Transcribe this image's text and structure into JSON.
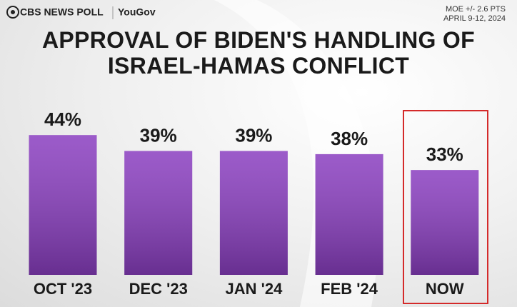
{
  "header": {
    "brand": "CBS NEWS POLL",
    "partner": "YouGov",
    "moe": "MOE +/- 2.6 PTS",
    "dates": "APRIL 9-12, 2024"
  },
  "chart_data": {
    "type": "bar",
    "title": "APPROVAL OF BIDEN'S HANDLING OF ISRAEL-HAMAS CONFLICT",
    "categories": [
      "OCT '23",
      "DEC '23",
      "JAN '24",
      "FEB '24",
      "NOW"
    ],
    "values": [
      44,
      39,
      39,
      38,
      33
    ],
    "value_labels": [
      "44%",
      "39%",
      "39%",
      "38%",
      "33%"
    ],
    "color": "#8a3ec0"
  }
}
